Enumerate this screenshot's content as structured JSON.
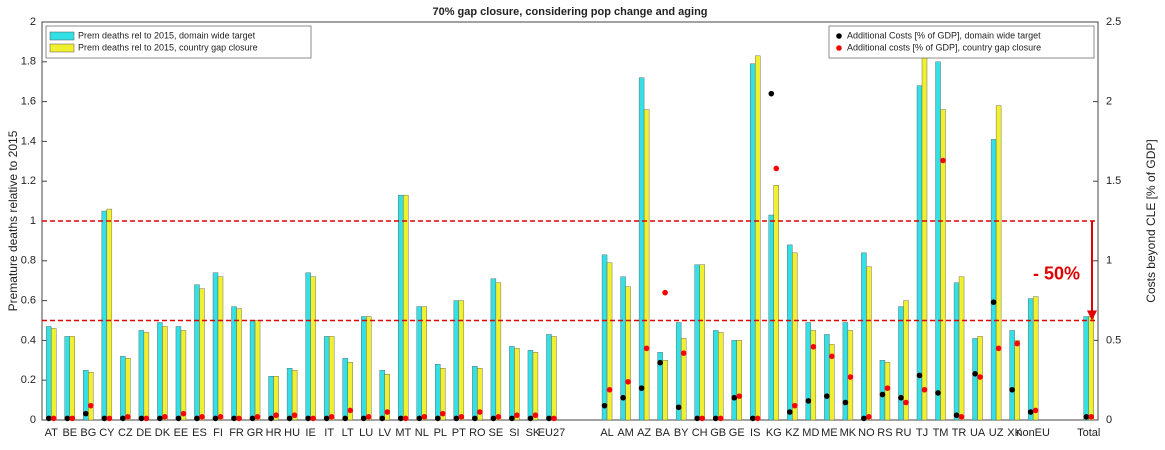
{
  "chart_data": {
    "type": "bar",
    "title": "70% gap closure, considering pop change and aging",
    "ylabel": "Premature deaths relative to 2015",
    "y2label": "Costs beyond CLE [% of GDP]",
    "categories": [
      "AT",
      "BE",
      "BG",
      "CY",
      "CZ",
      "DE",
      "DK",
      "EE",
      "ES",
      "FI",
      "FR",
      "GR",
      "HR",
      "HU",
      "IE",
      "IT",
      "LT",
      "LU",
      "LV",
      "MT",
      "NL",
      "PL",
      "PT",
      "RO",
      "SE",
      "SI",
      "SK",
      "EU27",
      null,
      null,
      "AL",
      "AM",
      "AZ",
      "BA",
      "BY",
      "CH",
      "GB",
      "GE",
      "IS",
      "KG",
      "KZ",
      "MD",
      "ME",
      "MK",
      "NO",
      "RS",
      "RU",
      "TJ",
      "TM",
      "TR",
      "UA",
      "UZ",
      "XK",
      "nonEU",
      null,
      null,
      "Total"
    ],
    "series": [
      {
        "name": "Prem deaths rel to 2015, domain wide target",
        "color": "#33e0e6",
        "values": [
          0.47,
          0.42,
          0.25,
          1.05,
          0.32,
          0.45,
          0.49,
          0.47,
          0.68,
          0.74,
          0.57,
          0.5,
          0.22,
          0.26,
          0.74,
          0.42,
          0.31,
          0.52,
          0.25,
          1.13,
          0.57,
          0.28,
          0.6,
          0.27,
          0.71,
          0.37,
          0.35,
          0.43,
          null,
          null,
          0.83,
          0.72,
          1.72,
          0.34,
          0.49,
          0.78,
          0.45,
          0.4,
          1.79,
          1.03,
          0.88,
          0.49,
          0.43,
          0.49,
          0.84,
          0.3,
          0.57,
          1.68,
          1.8,
          0.69,
          0.41,
          1.41,
          0.45,
          0.61,
          null,
          null,
          0.52
        ]
      },
      {
        "name": "Prem deaths rel to 2015, country gap closure",
        "color": "#f0f030",
        "values": [
          0.46,
          0.42,
          0.24,
          1.06,
          0.31,
          0.44,
          0.47,
          0.45,
          0.66,
          0.72,
          0.56,
          0.5,
          0.22,
          0.25,
          0.72,
          0.42,
          0.29,
          0.52,
          0.23,
          1.13,
          0.57,
          0.26,
          0.6,
          0.26,
          0.69,
          0.36,
          0.34,
          0.42,
          null,
          null,
          0.79,
          0.67,
          1.56,
          0.3,
          0.41,
          0.78,
          0.44,
          0.4,
          1.83,
          1.18,
          0.84,
          0.45,
          0.38,
          0.45,
          0.77,
          0.29,
          0.6,
          1.96,
          1.56,
          0.72,
          0.42,
          1.58,
          0.4,
          0.62,
          null,
          null,
          0.52
        ]
      },
      {
        "name": "Additional Costs [% of GDP], domain wide target",
        "color": "#000000",
        "axis": "y2",
        "values": [
          0.01,
          0.01,
          0.04,
          0.01,
          0.01,
          0.01,
          0.01,
          0.01,
          0.01,
          0.01,
          0.01,
          0.01,
          0.01,
          0.01,
          0.01,
          0.01,
          0.01,
          0.01,
          0.01,
          0.01,
          0.01,
          0.01,
          0.01,
          0.01,
          0.01,
          0.01,
          0.01,
          0.01,
          null,
          null,
          0.09,
          0.14,
          0.2,
          0.36,
          0.08,
          0.01,
          0.01,
          0.14,
          0.01,
          2.05,
          0.05,
          0.12,
          0.15,
          0.11,
          0.01,
          0.16,
          0.14,
          0.28,
          0.17,
          0.03,
          0.29,
          0.74,
          0.19,
          0.05,
          null,
          null,
          0.02
        ]
      },
      {
        "name": "Additional costs [% of GDP], country gap closure",
        "color": "#ff0000",
        "axis": "y2",
        "values": [
          0.01,
          0.01,
          0.09,
          0.01,
          0.02,
          0.01,
          0.02,
          0.04,
          0.02,
          0.02,
          0.01,
          0.02,
          0.03,
          0.03,
          0.01,
          0.02,
          0.06,
          0.02,
          0.05,
          0.01,
          0.02,
          0.04,
          0.02,
          0.05,
          0.02,
          0.03,
          0.03,
          0.01,
          null,
          null,
          0.19,
          0.24,
          0.45,
          0.8,
          0.42,
          0.01,
          0.01,
          0.15,
          0.01,
          1.58,
          0.09,
          0.46,
          0.4,
          0.27,
          0.02,
          0.2,
          0.11,
          0.19,
          1.63,
          0.02,
          0.27,
          0.45,
          0.48,
          0.06,
          null,
          null,
          0.02
        ]
      }
    ],
    "ylim": [
      0,
      2
    ],
    "yticks": [
      0,
      0.2,
      0.4,
      0.6,
      0.8,
      1,
      1.2,
      1.4,
      1.6,
      1.8,
      2
    ],
    "y2lim": [
      0,
      2.5
    ],
    "y2ticks": [
      0,
      0.5,
      1,
      1.5,
      2,
      2.5
    ],
    "ref_lines": [
      1,
      0.5
    ],
    "ref_color": "#e00000",
    "annotation": "- 50%",
    "legend": "upper left",
    "legend2": "upper right"
  }
}
